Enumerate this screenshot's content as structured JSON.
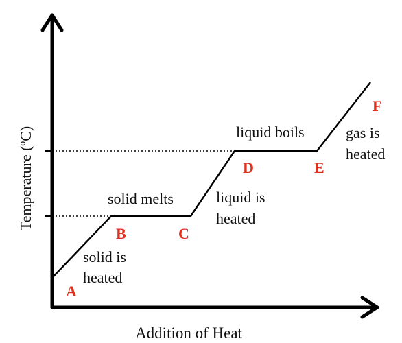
{
  "colors": {
    "line": "#000000",
    "point_label": "#e0301e",
    "text": "#111111"
  },
  "axes": {
    "y_label": "Temperature (ºC)",
    "x_label": "Addition of Heat"
  },
  "points": {
    "A": "A",
    "B": "B",
    "C": "C",
    "D": "D",
    "E": "E",
    "F": "F"
  },
  "segments": {
    "ab": [
      "solid is",
      "heated"
    ],
    "bc": "solid melts",
    "cd": [
      "liquid is",
      "heated"
    ],
    "de": "liquid boils",
    "ef": [
      "gas is",
      "heated"
    ]
  }
}
